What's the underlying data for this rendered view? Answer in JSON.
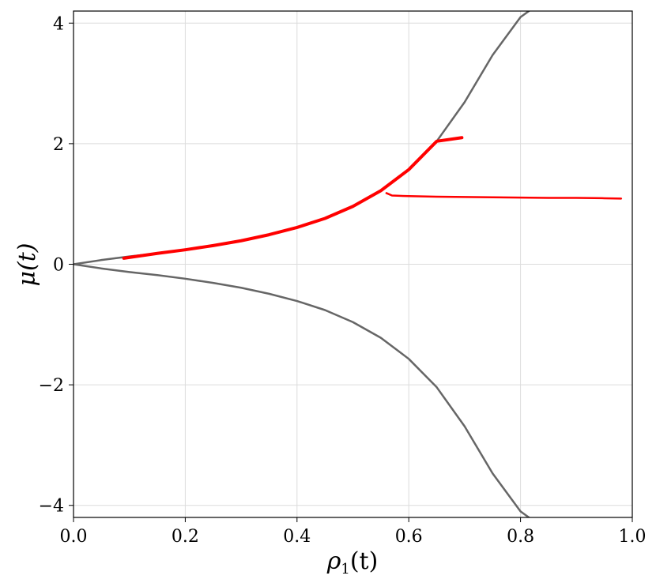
{
  "chart_data": {
    "type": "line",
    "title": "",
    "xlabel": {
      "base": "ρ",
      "sub": "1",
      "rest": "(t)"
    },
    "ylabel": "μ(t)",
    "xlim": [
      0.0,
      1.0
    ],
    "ylim": [
      -4.2,
      4.2
    ],
    "xticks": [
      0.0,
      0.2,
      0.4,
      0.6,
      0.8,
      1.0
    ],
    "xtick_labels": [
      "0.0",
      "0.2",
      "0.4",
      "0.6",
      "0.8",
      "1.0"
    ],
    "yticks": [
      -4,
      -2,
      0,
      2,
      4
    ],
    "ytick_labels": [
      "−4",
      "−2",
      "0",
      "2",
      "4"
    ],
    "grid": true,
    "colors": {
      "boundary": "#666666",
      "trajectory": "#ff0000"
    },
    "series": [
      {
        "role": "boundary-upper",
        "color": "#666666",
        "x": [
          0.0,
          0.05,
          0.1,
          0.15,
          0.2,
          0.25,
          0.3,
          0.35,
          0.4,
          0.45,
          0.5,
          0.55,
          0.6,
          0.65,
          0.7,
          0.75,
          0.8,
          0.815
        ],
        "y": [
          0.0,
          0.07,
          0.13,
          0.18,
          0.24,
          0.31,
          0.39,
          0.49,
          0.61,
          0.76,
          0.96,
          1.22,
          1.57,
          2.04,
          2.69,
          3.47,
          4.1,
          4.2
        ]
      },
      {
        "role": "boundary-lower",
        "color": "#666666",
        "x": [
          0.0,
          0.05,
          0.1,
          0.15,
          0.2,
          0.25,
          0.3,
          0.35,
          0.4,
          0.45,
          0.5,
          0.55,
          0.6,
          0.65,
          0.7,
          0.75,
          0.8,
          0.815
        ],
        "y": [
          0.0,
          -0.07,
          -0.13,
          -0.18,
          -0.24,
          -0.31,
          -0.39,
          -0.49,
          -0.61,
          -0.76,
          -0.96,
          -1.22,
          -1.57,
          -2.04,
          -2.69,
          -3.47,
          -4.1,
          -4.2
        ]
      },
      {
        "role": "trajectory-main",
        "color": "#ff0000",
        "width": 4,
        "x": [
          0.09,
          0.15,
          0.2,
          0.25,
          0.3,
          0.35,
          0.4,
          0.45,
          0.5,
          0.55,
          0.6,
          0.65,
          0.695
        ],
        "y": [
          0.1,
          0.18,
          0.24,
          0.31,
          0.39,
          0.49,
          0.61,
          0.76,
          0.96,
          1.22,
          1.57,
          2.04,
          2.1
        ]
      },
      {
        "role": "trajectory-branch",
        "color": "#ff0000",
        "width": 2.5,
        "x": [
          0.56,
          0.57,
          0.6,
          0.65,
          0.7,
          0.75,
          0.8,
          0.85,
          0.9,
          0.95,
          0.98
        ],
        "y": [
          1.18,
          1.14,
          1.13,
          1.12,
          1.115,
          1.11,
          1.105,
          1.1,
          1.1,
          1.095,
          1.09
        ]
      }
    ]
  }
}
